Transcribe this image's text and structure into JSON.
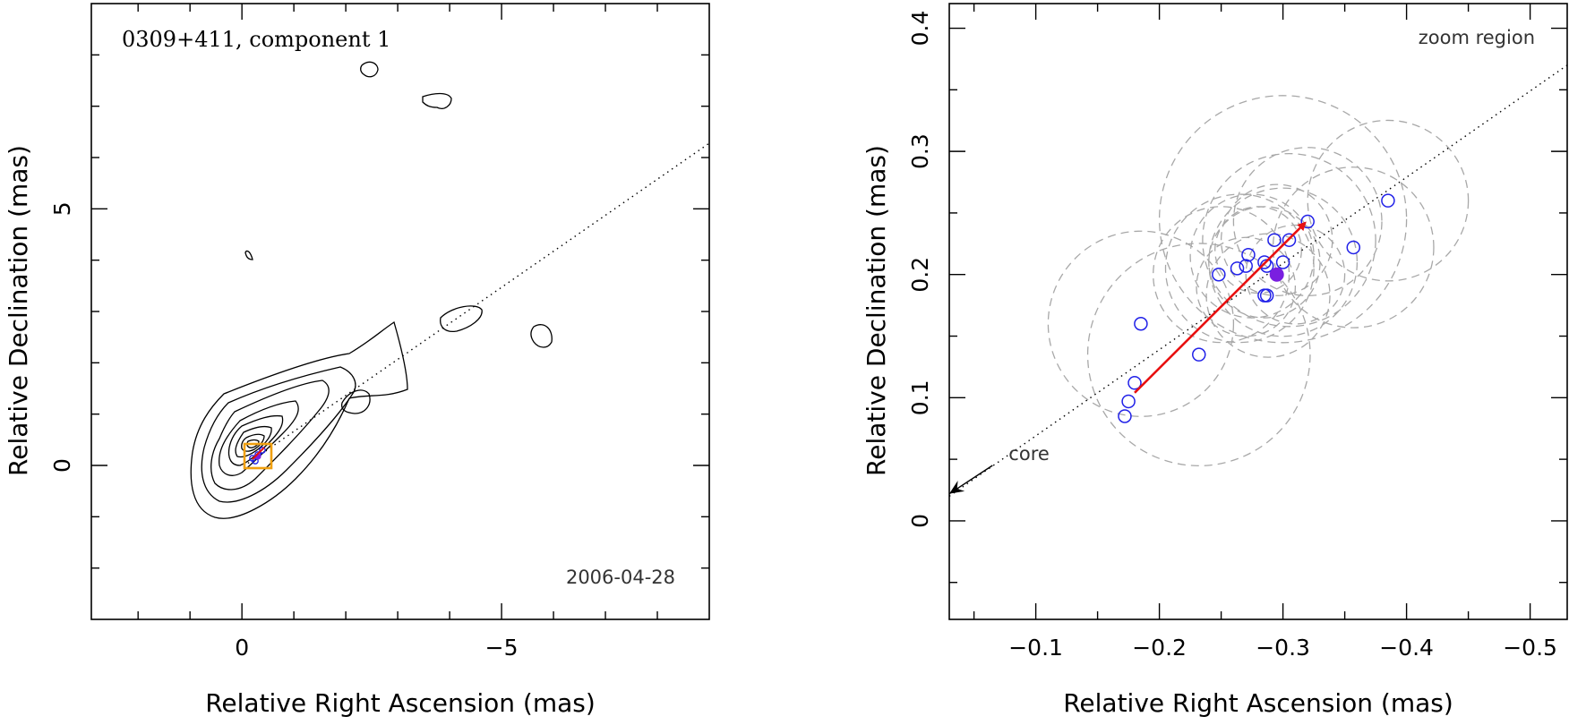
{
  "chart_data": [
    {
      "type": "contour",
      "title": "0309+411, component 1",
      "date_label": "2006-04-28",
      "xlabel": "Relative Right Ascension (mas)",
      "ylabel": "Relative Declination (mas)",
      "xlim": [
        2.9,
        -9.0
      ],
      "ylim": [
        -3.0,
        9.0
      ],
      "x_ticks": [
        {
          "value": 0,
          "label": "0"
        },
        {
          "value": -5,
          "label": "−5"
        }
      ],
      "y_ticks": [
        {
          "value": 0,
          "label": "0"
        },
        {
          "value": 5,
          "label": "5"
        }
      ],
      "contour_levels": 9,
      "core_position": [
        -0.25,
        0.2
      ],
      "trajectory_line": {
        "from": [
          0,
          0
        ],
        "to": [
          -9.0,
          6.25
        ],
        "style": "dotted"
      },
      "zoom_box": {
        "x": [
          -0.05,
          -0.55
        ],
        "y": [
          -0.05,
          0.42
        ],
        "color": "#f0a010"
      },
      "component_points": [
        [
          -0.2,
          0.15
        ],
        [
          -0.3,
          0.2
        ],
        [
          -0.35,
          0.25
        ],
        [
          -0.25,
          0.1
        ]
      ]
    },
    {
      "type": "scatter",
      "title": "zoom region",
      "core_label": "core",
      "xlabel": "Relative Right Ascension (mas)",
      "ylabel": "Relative Declination (mas)",
      "xlim": [
        -0.03,
        -0.53
      ],
      "ylim": [
        -0.08,
        0.42
      ],
      "x_ticks": [
        {
          "value": -0.1,
          "label": "−0.1"
        },
        {
          "value": -0.2,
          "label": "−0.2"
        },
        {
          "value": -0.3,
          "label": "−0.3"
        },
        {
          "value": -0.4,
          "label": "−0.4"
        },
        {
          "value": -0.5,
          "label": "−0.5"
        }
      ],
      "y_ticks": [
        {
          "value": 0,
          "label": "0"
        },
        {
          "value": 0.1,
          "label": "0.1"
        },
        {
          "value": 0.2,
          "label": "0.2"
        },
        {
          "value": 0.3,
          "label": "0.3"
        },
        {
          "value": 0.4,
          "label": "0.4"
        }
      ],
      "series": [
        {
          "name": "component positions",
          "style": "open-circle",
          "color": "#2020e8",
          "points": [
            [
              -0.172,
              0.085
            ],
            [
              -0.175,
              0.097
            ],
            [
              -0.18,
              0.112
            ],
            [
              -0.185,
              0.16
            ],
            [
              -0.232,
              0.135
            ],
            [
              -0.248,
              0.2
            ],
            [
              -0.263,
              0.205
            ],
            [
              -0.27,
              0.207
            ],
            [
              -0.272,
              0.216
            ],
            [
              -0.285,
              0.21
            ],
            [
              -0.287,
              0.207
            ],
            [
              -0.285,
              0.183
            ],
            [
              -0.287,
              0.183
            ],
            [
              -0.293,
              0.228
            ],
            [
              -0.3,
              0.21
            ],
            [
              -0.305,
              0.228
            ],
            [
              -0.32,
              0.243
            ],
            [
              -0.357,
              0.222
            ],
            [
              -0.385,
              0.26
            ]
          ]
        },
        {
          "name": "mean position",
          "style": "filled-circle",
          "color": "#7a1fe0",
          "points": [
            [
              -0.295,
              0.2
            ]
          ]
        },
        {
          "name": "position uncertainty",
          "style": "dashed-circle",
          "color": "#a8a8a8",
          "circles": [
            [
              -0.185,
              0.16,
              0.075
            ],
            [
              -0.232,
              0.135,
              0.09
            ],
            [
              -0.25,
              0.2,
              0.055
            ],
            [
              -0.265,
              0.205,
              0.06
            ],
            [
              -0.275,
              0.215,
              0.05
            ],
            [
              -0.285,
              0.21,
              0.045
            ],
            [
              -0.288,
              0.183,
              0.05
            ],
            [
              -0.295,
              0.228,
              0.045
            ],
            [
              -0.3,
              0.21,
              0.06
            ],
            [
              -0.305,
              0.228,
              0.07
            ],
            [
              -0.3,
              0.245,
              0.1
            ],
            [
              -0.32,
              0.243,
              0.06
            ],
            [
              -0.357,
              0.222,
              0.065
            ],
            [
              -0.385,
              0.26,
              0.065
            ],
            [
              -0.28,
              0.22,
              0.035
            ],
            [
              -0.27,
              0.19,
              0.04
            ],
            [
              -0.31,
              0.2,
              0.04
            ]
          ]
        }
      ],
      "trajectory_line": {
        "from": [
          -0.03,
          0.02
        ],
        "to": [
          -0.53,
          0.37
        ],
        "style": "dotted"
      },
      "core_arrow": {
        "from": [
          -0.065,
          0.045
        ],
        "to": [
          -0.03,
          0.022
        ]
      },
      "motion_arrow": {
        "from": [
          -0.18,
          0.104
        ],
        "to": [
          -0.318,
          0.242
        ],
        "color": "#e81010"
      }
    }
  ]
}
